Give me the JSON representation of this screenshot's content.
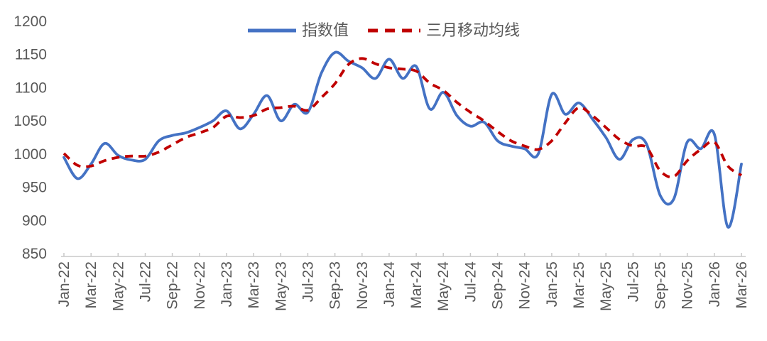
{
  "legend": {
    "series1_label": "指数值",
    "series2_label": "三月移动均线"
  },
  "colors": {
    "index_line": "#4472C4",
    "ma_line": "#C00000",
    "axis_text": "#595959",
    "axis_line": "#C9C9C9"
  },
  "chart_data": {
    "type": "line",
    "smooth": true,
    "grid": false,
    "legend_position": "top-center",
    "ylim": [
      850,
      1200
    ],
    "y_ticks": [
      "850",
      "900",
      "950",
      "1000",
      "1050",
      "1100",
      "1150",
      "1200"
    ],
    "x_tick_every": 2,
    "x": [
      "Jan-22",
      "Feb-22",
      "Mar-22",
      "Apr-22",
      "May-22",
      "Jun-22",
      "Jul-22",
      "Aug-22",
      "Sep-22",
      "Oct-22",
      "Nov-22",
      "Dec-22",
      "Jan-23",
      "Feb-23",
      "Mar-23",
      "Apr-23",
      "May-23",
      "Jun-23",
      "Jul-23",
      "Aug-23",
      "Sep-23",
      "Oct-23",
      "Nov-23",
      "Dec-23",
      "Jan-24",
      "Feb-24",
      "Mar-24",
      "Apr-24",
      "May-24",
      "Jun-24",
      "Jul-24",
      "Aug-24",
      "Sep-24",
      "Oct-24",
      "Nov-24",
      "Dec-24",
      "Jan-25",
      "Feb-25",
      "Mar-25",
      "Apr-25",
      "May-25",
      "Jun-25",
      "Jul-25",
      "Aug-25",
      "Sep-25",
      "Oct-25",
      "Nov-25",
      "Dec-25",
      "Jan-26",
      "Feb-26",
      "Mar-26"
    ],
    "x_labels_shown": [
      "Jan-22",
      "Mar-22",
      "May-22",
      "Jul-22",
      "Sep-22",
      "Nov-22",
      "Jan-23",
      "Mar-23",
      "May-23",
      "Jul-23",
      "Sep-23",
      "Nov-23",
      "Jan-24",
      "Mar-24",
      "May-24",
      "Jul-24",
      "Sep-24",
      "Nov-24",
      "Jan-25",
      "Mar-25",
      "May-25",
      "Jul-25",
      "Sep-25",
      "Nov-25",
      "Jan-26",
      "Mar-26"
    ],
    "series": [
      {
        "name": "指数值",
        "style": "solid",
        "color": "#4472C4",
        "values": [
          995,
          963,
          985,
          1016,
          998,
          991,
          992,
          1020,
          1028,
          1032,
          1040,
          1050,
          1065,
          1038,
          1060,
          1088,
          1050,
          1075,
          1063,
          1122,
          1153,
          1140,
          1130,
          1114,
          1143,
          1114,
          1132,
          1068,
          1093,
          1058,
          1042,
          1048,
          1020,
          1012,
          1008,
          1000,
          1090,
          1060,
          1077,
          1053,
          1025,
          992,
          1022,
          1015,
          938,
          932,
          1018,
          1008,
          1030,
          890,
          985
        ]
      },
      {
        "name": "三月移动均线",
        "style": "dashed",
        "color": "#C00000",
        "values": [
          1001,
          983,
          982,
          990,
          995,
          997,
          997,
          1003,
          1014,
          1025,
          1032,
          1040,
          1057,
          1055,
          1058,
          1068,
          1070,
          1072,
          1066,
          1085,
          1106,
          1135,
          1144,
          1136,
          1130,
          1128,
          1125,
          1107,
          1096,
          1078,
          1063,
          1050,
          1034,
          1020,
          1012,
          1007,
          1020,
          1047,
          1070,
          1058,
          1040,
          1022,
          1012,
          1010,
          975,
          966,
          990,
          1007,
          1018,
          982,
          968
        ]
      }
    ]
  }
}
